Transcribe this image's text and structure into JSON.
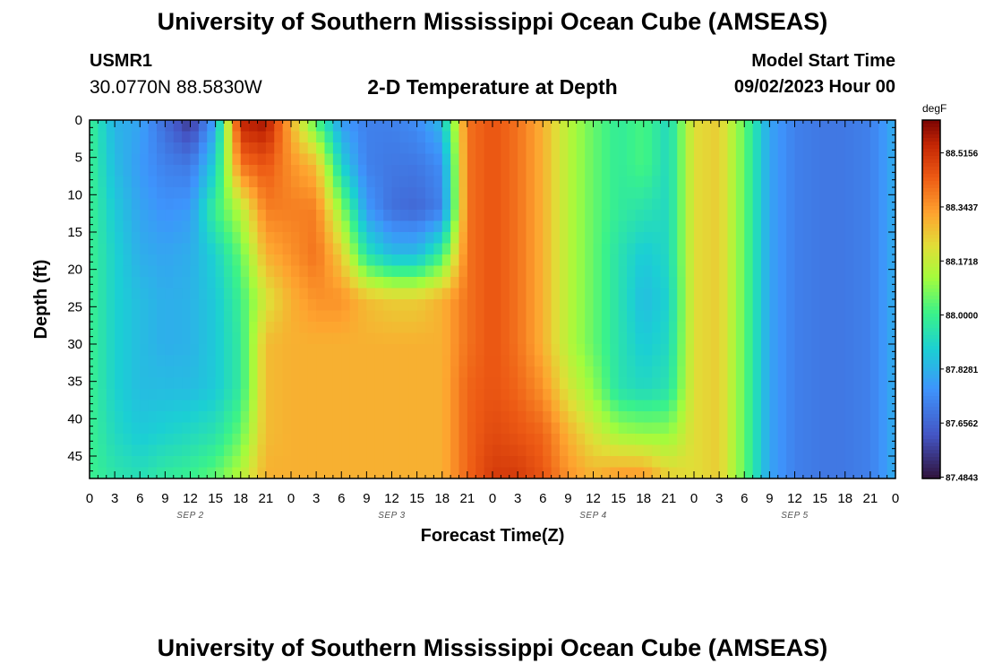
{
  "header": {
    "title": "University of Southern Mississippi Ocean Cube (AMSEAS)",
    "station_id": "USMR1",
    "coordinates": "30.0770N  88.5830W",
    "subtitle": "2-D Temperature at Depth",
    "model_start_label": "Model Start Time",
    "model_start_value": "09/02/2023 Hour 00"
  },
  "footer": {
    "title": "University of Southern Mississippi Ocean Cube (AMSEAS)"
  },
  "colors": {
    "background": "#ffffff",
    "axis": "#000000",
    "date_label": "#555555"
  },
  "chart_data": {
    "type": "heatmap",
    "title": "2-D Temperature at Depth",
    "xlabel": "Forecast Time(Z)",
    "ylabel": "Depth (ft)",
    "x_range_hours": [
      0,
      96
    ],
    "y_range_ft": [
      0,
      48
    ],
    "x_tick_labels": [
      "0",
      "3",
      "6",
      "9",
      "12",
      "15",
      "18",
      "21",
      "0",
      "3",
      "6",
      "9",
      "12",
      "15",
      "18",
      "21",
      "0",
      "3",
      "6",
      "9",
      "12",
      "15",
      "18",
      "21",
      "0",
      "3",
      "6",
      "9",
      "12",
      "15",
      "18",
      "21",
      "0"
    ],
    "y_ticks": [
      0,
      5,
      10,
      15,
      20,
      25,
      30,
      35,
      40,
      45
    ],
    "date_labels": [
      {
        "label": "SEP 2",
        "hour": 12
      },
      {
        "label": "SEP 3",
        "hour": 36
      },
      {
        "label": "SEP 4",
        "hour": 60
      },
      {
        "label": "SEP 5",
        "hour": 84
      }
    ],
    "colorbar": {
      "unit": "degF",
      "range": [
        87.48,
        88.62
      ],
      "ticks": [
        87.4843,
        87.6562,
        87.8281,
        88.0,
        88.1718,
        88.3437,
        88.5156
      ],
      "tick_labels": [
        "87.4843",
        "87.6562",
        "87.8281",
        "88.0000",
        "88.1718",
        "88.3437",
        "88.5156"
      ]
    },
    "time_hours": [
      0,
      3,
      6,
      9,
      12,
      15,
      18,
      21,
      24,
      27,
      30,
      33,
      36,
      39,
      42,
      45,
      48,
      51,
      54,
      57,
      60,
      63,
      66,
      69,
      72,
      75,
      78,
      81,
      84,
      87,
      90,
      93,
      96
    ],
    "depth_ft": [
      0,
      6,
      12,
      18,
      24,
      30,
      36,
      42,
      48
    ],
    "temperature_degF": [
      [
        88.0,
        87.83,
        87.8,
        87.67,
        87.55,
        87.8,
        88.55,
        88.58,
        88.3,
        88.02,
        87.78,
        87.72,
        87.72,
        87.75,
        87.85,
        88.4,
        88.45,
        88.4,
        88.3,
        88.15,
        88.05,
        87.98,
        88.02,
        87.92,
        88.22,
        88.25,
        88.05,
        87.8,
        87.72,
        87.7,
        87.7,
        87.72,
        87.82
      ],
      [
        88.0,
        87.85,
        87.78,
        87.72,
        87.7,
        87.9,
        88.4,
        88.45,
        88.35,
        88.28,
        87.9,
        87.72,
        87.7,
        87.7,
        87.75,
        88.4,
        88.45,
        88.4,
        88.3,
        88.15,
        88.05,
        87.98,
        88.02,
        87.92,
        88.22,
        88.25,
        88.05,
        87.8,
        87.72,
        87.7,
        87.7,
        87.72,
        87.82
      ],
      [
        88.0,
        87.88,
        87.8,
        87.76,
        87.78,
        88.0,
        88.15,
        88.38,
        88.38,
        88.38,
        88.1,
        87.78,
        87.68,
        87.66,
        87.72,
        88.4,
        88.45,
        88.4,
        88.3,
        88.15,
        88.05,
        87.98,
        87.95,
        87.92,
        88.22,
        88.25,
        88.05,
        87.8,
        87.72,
        87.7,
        87.7,
        87.72,
        87.82
      ],
      [
        88.0,
        87.9,
        87.82,
        87.8,
        87.82,
        87.9,
        88.05,
        88.3,
        88.35,
        88.4,
        88.25,
        87.95,
        87.85,
        87.85,
        88.0,
        88.4,
        88.45,
        88.4,
        88.3,
        88.15,
        88.05,
        87.95,
        87.88,
        87.92,
        88.22,
        88.25,
        88.05,
        87.8,
        87.72,
        87.7,
        87.7,
        87.72,
        87.82
      ],
      [
        88.0,
        87.9,
        87.85,
        87.82,
        87.83,
        87.88,
        88.0,
        88.2,
        88.3,
        88.35,
        88.35,
        88.28,
        88.25,
        88.25,
        88.3,
        88.4,
        88.45,
        88.4,
        88.3,
        88.15,
        88.05,
        87.95,
        87.85,
        87.9,
        88.22,
        88.25,
        88.05,
        87.8,
        87.72,
        87.7,
        87.7,
        87.72,
        87.82
      ],
      [
        88.0,
        87.9,
        87.85,
        87.82,
        87.83,
        87.88,
        87.98,
        88.28,
        88.3,
        88.3,
        88.3,
        88.3,
        88.3,
        88.3,
        88.3,
        88.4,
        88.45,
        88.4,
        88.3,
        88.15,
        88.05,
        87.95,
        87.88,
        87.92,
        88.22,
        88.25,
        88.05,
        87.8,
        87.72,
        87.7,
        87.7,
        87.72,
        87.82
      ],
      [
        88.0,
        87.9,
        87.85,
        87.85,
        87.85,
        87.88,
        87.98,
        88.28,
        88.3,
        88.3,
        88.3,
        88.3,
        88.3,
        88.3,
        88.3,
        88.42,
        88.45,
        88.42,
        88.35,
        88.2,
        88.1,
        87.95,
        87.92,
        87.95,
        88.22,
        88.25,
        88.05,
        87.8,
        87.72,
        87.7,
        87.7,
        87.72,
        87.82
      ],
      [
        88.0,
        87.92,
        87.88,
        87.9,
        87.92,
        87.95,
        88.05,
        88.28,
        88.3,
        88.3,
        88.3,
        88.3,
        88.3,
        88.3,
        88.3,
        88.42,
        88.47,
        88.45,
        88.42,
        88.3,
        88.2,
        88.12,
        88.1,
        88.1,
        88.22,
        88.25,
        88.05,
        87.8,
        87.72,
        87.7,
        87.7,
        87.72,
        87.82
      ],
      [
        88.0,
        87.96,
        87.94,
        87.98,
        88.0,
        88.05,
        88.15,
        88.3,
        88.3,
        88.3,
        88.3,
        88.3,
        88.3,
        88.3,
        88.3,
        88.42,
        88.5,
        88.5,
        88.45,
        88.35,
        88.3,
        88.35,
        88.35,
        88.25,
        88.22,
        88.25,
        88.05,
        87.8,
        87.72,
        87.7,
        87.7,
        87.72,
        87.82
      ]
    ]
  }
}
